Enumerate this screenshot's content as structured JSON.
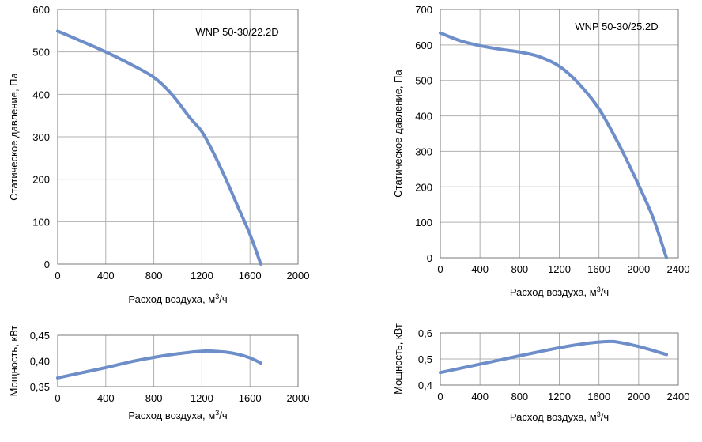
{
  "accent_color": "#6d8ec9",
  "chart_data": [
    {
      "id": "left-pressure",
      "type": "line",
      "title": "WNP 50-30/22.2D",
      "xlabel": "Расход воздуха, м³/ч",
      "ylabel": "Статическое давление, Па",
      "xlim": [
        0,
        2000
      ],
      "ylim": [
        0,
        600
      ],
      "xticks": [
        "0",
        "400",
        "800",
        "1200",
        "1600",
        "2000"
      ],
      "yticks": [
        "0",
        "100",
        "200",
        "300",
        "400",
        "500",
        "600"
      ],
      "grid": true,
      "series": [
        {
          "x": [
            0,
            200,
            400,
            600,
            800,
            950,
            1100,
            1200,
            1300,
            1400,
            1500,
            1600,
            1690
          ],
          "y": [
            549,
            525,
            500,
            472,
            440,
            400,
            345,
            312,
            260,
            200,
            135,
            70,
            0
          ]
        }
      ]
    },
    {
      "id": "right-pressure",
      "type": "line",
      "title": "WNP 50-30/25.2D",
      "xlabel": "Расход воздуха, м³/ч",
      "ylabel": "Статическое давление, Па",
      "xlim": [
        0,
        2400
      ],
      "ylim": [
        0,
        700
      ],
      "xticks": [
        "0",
        "400",
        "800",
        "1200",
        "1600",
        "2000",
        "2400"
      ],
      "yticks": [
        "0",
        "100",
        "200",
        "300",
        "400",
        "500",
        "600",
        "700"
      ],
      "grid": true,
      "series": [
        {
          "x": [
            0,
            200,
            400,
            600,
            800,
            1000,
            1200,
            1400,
            1600,
            1800,
            2000,
            2150,
            2280
          ],
          "y": [
            634,
            612,
            598,
            588,
            580,
            567,
            540,
            490,
            420,
            320,
            205,
            110,
            0
          ]
        }
      ]
    },
    {
      "id": "left-power",
      "type": "line",
      "xlabel": "Расход воздуха, м³/ч",
      "ylabel": "Мощность, кВт",
      "xlim": [
        0,
        2000
      ],
      "ylim": [
        0.35,
        0.45
      ],
      "xticks": [
        "0",
        "400",
        "800",
        "1200",
        "1600",
        "2000"
      ],
      "yticks": [
        "0,35",
        "0,40",
        "0,45"
      ],
      "grid": true,
      "series": [
        {
          "x": [
            0,
            200,
            400,
            600,
            800,
            1000,
            1200,
            1300,
            1400,
            1500,
            1600,
            1690
          ],
          "y": [
            0.367,
            0.377,
            0.387,
            0.398,
            0.407,
            0.414,
            0.419,
            0.419,
            0.417,
            0.413,
            0.406,
            0.396
          ]
        }
      ]
    },
    {
      "id": "right-power",
      "type": "line",
      "xlabel": "Расход воздуха, м³/ч",
      "ylabel": "Мощность, кВт",
      "xlim": [
        0,
        2400
      ],
      "ylim": [
        0.4,
        0.6
      ],
      "xticks": [
        "0",
        "400",
        "800",
        "1200",
        "1600",
        "2000",
        "2400"
      ],
      "yticks": [
        "0,4",
        "0,5",
        "0,6"
      ],
      "grid": true,
      "series": [
        {
          "x": [
            0,
            400,
            800,
            1200,
            1500,
            1700,
            1800,
            2000,
            2280
          ],
          "y": [
            0.448,
            0.48,
            0.512,
            0.543,
            0.561,
            0.567,
            0.564,
            0.548,
            0.517
          ]
        }
      ]
    }
  ]
}
